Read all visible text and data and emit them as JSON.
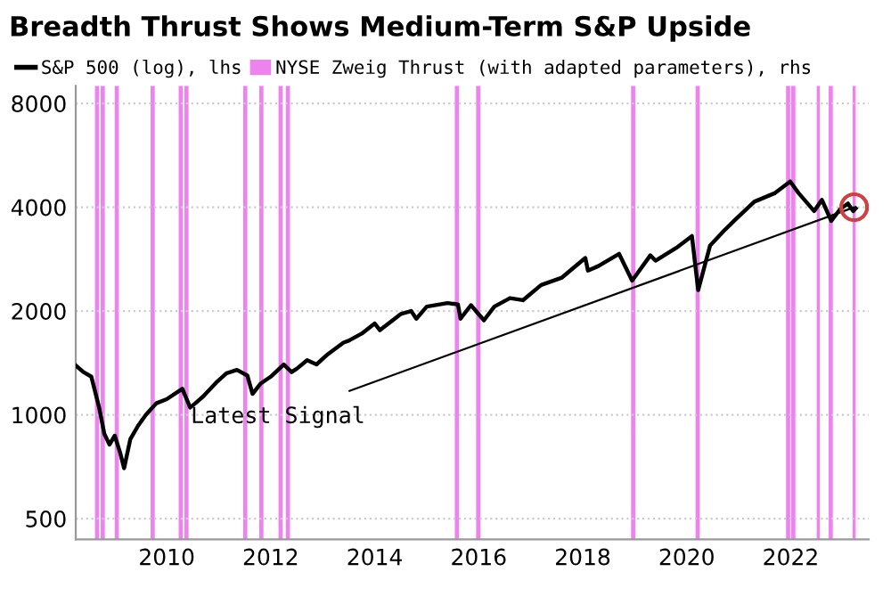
{
  "chart_data": {
    "type": "line",
    "title": "Breadth Thrust Shows Medium-Term S&P Upside",
    "x": [
      2008.25,
      2008.4,
      2008.55,
      2008.7,
      2008.8,
      2008.9,
      2009.0,
      2009.1,
      2009.18,
      2009.3,
      2009.45,
      2009.6,
      2009.8,
      2010.0,
      2010.3,
      2010.45,
      2010.55,
      2010.7,
      2010.95,
      2011.15,
      2011.35,
      2011.55,
      2011.65,
      2011.8,
      2012.0,
      2012.25,
      2012.4,
      2012.5,
      2012.7,
      2012.88,
      2013.1,
      2013.4,
      2013.5,
      2013.75,
      2014.0,
      2014.1,
      2014.5,
      2014.7,
      2014.8,
      2015.0,
      2015.4,
      2015.6,
      2015.65,
      2015.85,
      2016.1,
      2016.3,
      2016.6,
      2016.85,
      2017.2,
      2017.6,
      2018.05,
      2018.1,
      2018.3,
      2018.7,
      2018.95,
      2019.3,
      2019.4,
      2019.8,
      2020.1,
      2020.22,
      2020.45,
      2020.7,
      2020.95,
      2021.3,
      2021.7,
      2021.99,
      2022.15,
      2022.45,
      2022.6,
      2022.78,
      2022.95,
      2023.1,
      2023.2,
      2023.25
    ],
    "series": [
      {
        "name": "S&P 500 (log), lhs",
        "color": "#000000",
        "values": [
          1390,
          1330,
          1290,
          1050,
          880,
          820,
          870,
          780,
          700,
          850,
          930,
          1000,
          1080,
          1110,
          1190,
          1050,
          1080,
          1130,
          1240,
          1320,
          1350,
          1300,
          1150,
          1230,
          1290,
          1400,
          1330,
          1360,
          1440,
          1400,
          1500,
          1620,
          1640,
          1720,
          1840,
          1760,
          1960,
          2000,
          1900,
          2060,
          2110,
          2090,
          1900,
          2080,
          1880,
          2060,
          2180,
          2150,
          2380,
          2500,
          2850,
          2620,
          2700,
          2930,
          2450,
          2900,
          2800,
          3050,
          3300,
          2300,
          3100,
          3400,
          3700,
          4150,
          4400,
          4750,
          4400,
          3900,
          4200,
          3650,
          3950,
          4100,
          3900,
          3970
        ]
      }
    ],
    "bands": [
      {
        "axis": "x",
        "from": 2008.62,
        "to": 2008.7,
        "color": "#ee82ee",
        "label": "NYSE Zweig Thrust (with adapted parameters), rhs"
      },
      {
        "axis": "x",
        "from": 2008.73,
        "to": 2008.81,
        "color": "#ee82ee"
      },
      {
        "axis": "x",
        "from": 2009.0,
        "to": 2009.08,
        "color": "#ee82ee"
      },
      {
        "axis": "x",
        "from": 2009.69,
        "to": 2009.77,
        "color": "#ee82ee"
      },
      {
        "axis": "x",
        "from": 2010.23,
        "to": 2010.31,
        "color": "#ee82ee"
      },
      {
        "axis": "x",
        "from": 2010.34,
        "to": 2010.42,
        "color": "#ee82ee"
      },
      {
        "axis": "x",
        "from": 2011.47,
        "to": 2011.55,
        "color": "#ee82ee"
      },
      {
        "axis": "x",
        "from": 2011.78,
        "to": 2011.86,
        "color": "#ee82ee"
      },
      {
        "axis": "x",
        "from": 2012.15,
        "to": 2012.23,
        "color": "#ee82ee"
      },
      {
        "axis": "x",
        "from": 2012.29,
        "to": 2012.37,
        "color": "#ee82ee"
      },
      {
        "axis": "x",
        "from": 2015.54,
        "to": 2015.62,
        "color": "#ee82ee"
      },
      {
        "axis": "x",
        "from": 2015.95,
        "to": 2016.03,
        "color": "#ee82ee"
      },
      {
        "axis": "x",
        "from": 2018.93,
        "to": 2019.01,
        "color": "#ee82ee"
      },
      {
        "axis": "x",
        "from": 2020.17,
        "to": 2020.25,
        "color": "#ee82ee"
      },
      {
        "axis": "x",
        "from": 2021.91,
        "to": 2021.99,
        "color": "#ee82ee"
      },
      {
        "axis": "x",
        "from": 2022.01,
        "to": 2022.09,
        "color": "#ee82ee"
      },
      {
        "axis": "x",
        "from": 2022.5,
        "to": 2022.56,
        "color": "#ee82ee"
      },
      {
        "axis": "x",
        "from": 2022.73,
        "to": 2022.81,
        "color": "#ee82ee"
      },
      {
        "axis": "x",
        "from": 2023.19,
        "to": 2023.25,
        "color": "#ee82ee"
      }
    ],
    "annotations": [
      {
        "text": "Latest Signal",
        "x": 2023.22,
        "y": 4000
      }
    ],
    "log": "y",
    "xlim": [
      2008.25,
      2023.5
    ],
    "xticks": [
      2010,
      2012,
      2014,
      2016,
      2018,
      2020,
      2022
    ],
    "ylim": [
      435,
      9000
    ],
    "yticks": [
      500,
      1000,
      2000,
      4000,
      8000
    ],
    "grid": "y",
    "legend": "top"
  }
}
